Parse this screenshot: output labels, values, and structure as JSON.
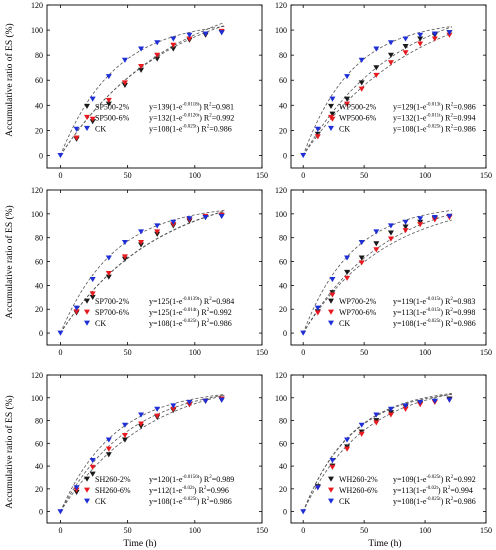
{
  "colors": {
    "black": "#1a1a1a",
    "red": "#e8191f",
    "blue": "#1f2fd6",
    "fit": "#555555"
  },
  "axes": {
    "ylabel": "Accumulative ratio of ES (%)",
    "xlabel": "Time (h)",
    "xticks": [
      "0",
      "50",
      "100",
      "150"
    ],
    "yticks": [
      "0",
      "20",
      "40",
      "60",
      "80",
      "100",
      "120"
    ]
  },
  "chart_data": [
    {
      "type": "scatter",
      "panel": "SP500",
      "xlim": [
        -10,
        150
      ],
      "ylim": [
        -10,
        120
      ],
      "series": [
        {
          "name": "SP500-2%",
          "color": "black",
          "eq_pre": "y=139(1-e",
          "eq_exp": "-0.0118t",
          "eq_post": ") R",
          "r2": "=0.981",
          "fit": {
            "a": 139,
            "k": 0.0118
          },
          "x": [
            12,
            24,
            36,
            48,
            60,
            72,
            84,
            96,
            108,
            120
          ],
          "y": [
            13,
            27,
            41,
            56,
            68,
            77,
            85,
            92,
            96,
            98
          ]
        },
        {
          "name": "SP500-6%",
          "color": "red",
          "eq_pre": "y=132(1-e",
          "eq_exp": "-0.0126t",
          "eq_post": ") R",
          "r2": "=0.992",
          "fit": {
            "a": 132,
            "k": 0.0126
          },
          "x": [
            12,
            24,
            36,
            48,
            60,
            72,
            84,
            96,
            108,
            120
          ],
          "y": [
            14,
            29,
            44,
            58,
            71,
            80,
            88,
            93,
            97,
            99
          ]
        },
        {
          "name": "CK",
          "color": "blue",
          "eq_pre": "y=108(1-e",
          "eq_exp": "-0.025t",
          "eq_post": ") R",
          "r2": "=0.986",
          "fit": {
            "a": 108,
            "k": 0.025
          },
          "x": [
            0,
            12,
            24,
            36,
            48,
            60,
            72,
            84,
            96,
            108,
            120
          ],
          "y": [
            0,
            21,
            45,
            63,
            76,
            85,
            90,
            93,
            96,
            97,
            98
          ]
        }
      ]
    },
    {
      "type": "scatter",
      "panel": "WP500",
      "xlim": [
        -10,
        150
      ],
      "ylim": [
        -10,
        120
      ],
      "series": [
        {
          "name": "WP500-2%",
          "color": "black",
          "eq_pre": "y=129(1-e",
          "eq_exp": "-0.013t",
          "eq_post": ") R",
          "r2": "=0.986",
          "fit": {
            "a": 129,
            "k": 0.013
          },
          "x": [
            12,
            24,
            36,
            48,
            60,
            72,
            84,
            96,
            108,
            120
          ],
          "y": [
            17,
            33,
            45,
            58,
            70,
            80,
            87,
            93,
            96,
            98
          ]
        },
        {
          "name": "WP500-6%",
          "color": "red",
          "eq_pre": "y=132(1-e",
          "eq_exp": "-0.011t",
          "eq_post": ") R",
          "r2": "=0.994",
          "fit": {
            "a": 132,
            "k": 0.011
          },
          "x": [
            12,
            24,
            36,
            48,
            60,
            72,
            84,
            96,
            108,
            120
          ],
          "y": [
            15,
            29,
            41,
            53,
            64,
            74,
            82,
            89,
            93,
            96
          ]
        },
        {
          "name": "CK",
          "color": "blue",
          "eq_pre": "y=108(1-e",
          "eq_exp": "-0.025t",
          "eq_post": ") R",
          "r2": "=0.986",
          "fit": {
            "a": 108,
            "k": 0.025
          },
          "x": [
            0,
            12,
            24,
            36,
            48,
            60,
            72,
            84,
            96,
            108,
            120
          ],
          "y": [
            0,
            21,
            45,
            63,
            76,
            85,
            90,
            93,
            96,
            97,
            98
          ]
        }
      ]
    },
    {
      "type": "scatter",
      "panel": "SP700",
      "xlim": [
        -10,
        150
      ],
      "ylim": [
        -10,
        120
      ],
      "series": [
        {
          "name": "SP700-2%",
          "color": "black",
          "eq_pre": "y=125(1-e",
          "eq_exp": "-0.0139t",
          "eq_post": ") R",
          "r2": "=0.984",
          "fit": {
            "a": 125,
            "k": 0.0139
          },
          "x": [
            12,
            24,
            36,
            48,
            60,
            72,
            84,
            96,
            108,
            120
          ],
          "y": [
            17,
            30,
            47,
            62,
            74,
            83,
            90,
            94,
            97,
            98
          ]
        },
        {
          "name": "SP700-6%",
          "color": "red",
          "eq_pre": "y=125(1-e",
          "eq_exp": "-0.014t",
          "eq_post": ") R",
          "r2": "=0.992",
          "fit": {
            "a": 125,
            "k": 0.014
          },
          "x": [
            12,
            24,
            36,
            48,
            60,
            72,
            84,
            96,
            108,
            120
          ],
          "y": [
            18,
            33,
            50,
            64,
            76,
            85,
            91,
            95,
            98,
            99
          ]
        },
        {
          "name": "CK",
          "color": "blue",
          "eq_pre": "y=108(1-e",
          "eq_exp": "-0.025t",
          "eq_post": ") R",
          "r2": "=0.986",
          "fit": {
            "a": 108,
            "k": 0.025
          },
          "x": [
            0,
            12,
            24,
            36,
            48,
            60,
            72,
            84,
            96,
            108,
            120
          ],
          "y": [
            0,
            21,
            45,
            63,
            76,
            85,
            90,
            93,
            96,
            97,
            98
          ]
        }
      ]
    },
    {
      "type": "scatter",
      "panel": "WP700",
      "xlim": [
        -10,
        150
      ],
      "ylim": [
        -10,
        120
      ],
      "series": [
        {
          "name": "WP700-2%",
          "color": "black",
          "eq_pre": "y=119(1-e",
          "eq_exp": "-0.015t",
          "eq_post": ") R",
          "r2": "=0.983",
          "fit": {
            "a": 119,
            "k": 0.015
          },
          "x": [
            12,
            24,
            36,
            48,
            60,
            72,
            84,
            96,
            108,
            120
          ],
          "y": [
            18,
            34,
            51,
            63,
            75,
            84,
            89,
            93,
            96,
            98
          ]
        },
        {
          "name": "WP700-6%",
          "color": "red",
          "eq_pre": "y=113(1-e",
          "eq_exp": "-0.015t",
          "eq_post": ") R",
          "r2": "=0.998",
          "fit": {
            "a": 113,
            "k": 0.015
          },
          "x": [
            12,
            24,
            36,
            48,
            60,
            72,
            84,
            96,
            108,
            120
          ],
          "y": [
            17,
            32,
            46,
            59,
            70,
            79,
            86,
            91,
            95,
            97
          ]
        },
        {
          "name": "CK",
          "color": "blue",
          "eq_pre": "y=108(1-e",
          "eq_exp": "-0.025t",
          "eq_post": ") R",
          "r2": "=0.986",
          "fit": {
            "a": 108,
            "k": 0.025
          },
          "x": [
            0,
            12,
            24,
            36,
            48,
            60,
            72,
            84,
            96,
            108,
            120
          ],
          "y": [
            0,
            21,
            45,
            63,
            76,
            85,
            90,
            93,
            96,
            97,
            98
          ]
        }
      ]
    },
    {
      "type": "scatter",
      "panel": "SH260",
      "xlim": [
        -10,
        150
      ],
      "ylim": [
        -10,
        120
      ],
      "series": [
        {
          "name": "SH260-2%",
          "color": "black",
          "eq_pre": "y=120(1-e",
          "eq_exp": "-0.0156t",
          "eq_post": ") R",
          "r2": "=0.989",
          "fit": {
            "a": 120,
            "k": 0.0156
          },
          "x": [
            12,
            24,
            36,
            48,
            60,
            72,
            84,
            96,
            108,
            120
          ],
          "y": [
            17,
            33,
            50,
            63,
            75,
            83,
            89,
            94,
            97,
            98
          ]
        },
        {
          "name": "SH260-6%",
          "color": "red",
          "eq_pre": "y=112(1-e",
          "eq_exp": "-0.02t",
          "eq_post": ") R",
          "r2": "=0.996",
          "fit": {
            "a": 112,
            "k": 0.02
          },
          "x": [
            12,
            24,
            36,
            48,
            60,
            72,
            84,
            96,
            108,
            120
          ],
          "y": [
            19,
            39,
            55,
            67,
            77,
            84,
            90,
            94,
            97,
            99
          ]
        },
        {
          "name": "CK",
          "color": "blue",
          "eq_pre": "y=108(1-e",
          "eq_exp": "-0.025t",
          "eq_post": ") R",
          "r2": "=0.986",
          "fit": {
            "a": 108,
            "k": 0.025
          },
          "x": [
            0,
            12,
            24,
            36,
            48,
            60,
            72,
            84,
            96,
            108,
            120
          ],
          "y": [
            0,
            21,
            45,
            63,
            76,
            85,
            90,
            93,
            96,
            97,
            98
          ]
        }
      ]
    },
    {
      "type": "scatter",
      "panel": "WH260",
      "xlim": [
        -10,
        150
      ],
      "ylim": [
        -10,
        120
      ],
      "series": [
        {
          "name": "WH260-2%",
          "color": "black",
          "eq_pre": "y=109(1-e",
          "eq_exp": "-0.025t",
          "eq_post": ") R",
          "r2": "=0.992",
          "fit": {
            "a": 109,
            "k": 0.025
          },
          "x": [
            12,
            24,
            36,
            48,
            60,
            72,
            84,
            96,
            108,
            120
          ],
          "y": [
            22,
            40,
            57,
            70,
            80,
            87,
            92,
            95,
            97,
            99
          ]
        },
        {
          "name": "WH260-6%",
          "color": "red",
          "eq_pre": "y=113(1-e",
          "eq_exp": "-0.02t",
          "eq_post": ") R",
          "r2": "=0.994",
          "fit": {
            "a": 113,
            "k": 0.02
          },
          "x": [
            12,
            24,
            36,
            48,
            60,
            72,
            84,
            96,
            108,
            120
          ],
          "y": [
            21,
            39,
            55,
            68,
            78,
            85,
            90,
            94,
            96,
            98
          ]
        },
        {
          "name": "CK",
          "color": "blue",
          "eq_pre": "y=108(1-e",
          "eq_exp": "-0.025t",
          "eq_post": ") R",
          "r2": "=0.986",
          "fit": {
            "a": 108,
            "k": 0.025
          },
          "x": [
            0,
            12,
            24,
            36,
            48,
            60,
            72,
            84,
            96,
            108,
            120
          ],
          "y": [
            0,
            21,
            45,
            63,
            76,
            85,
            90,
            93,
            96,
            97,
            98
          ]
        }
      ]
    }
  ]
}
